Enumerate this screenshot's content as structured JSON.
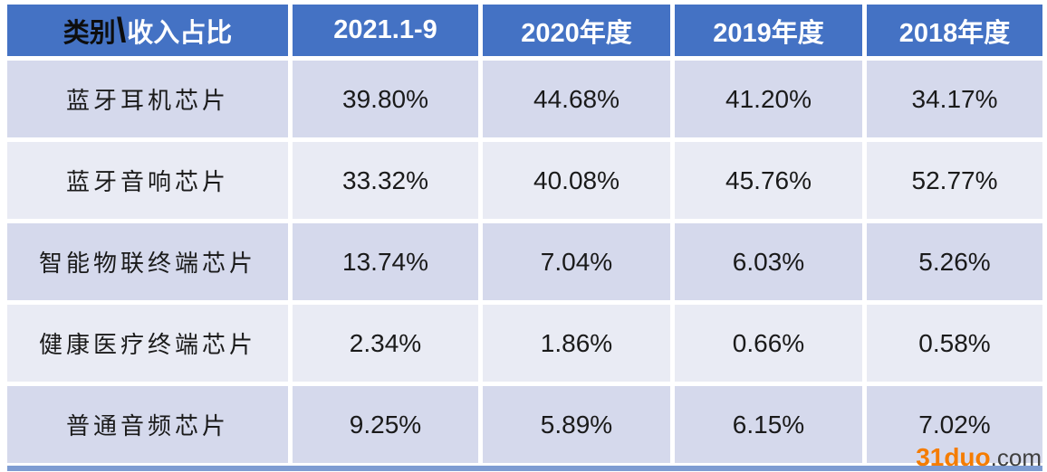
{
  "chart_data": {
    "type": "table",
    "header": {
      "corner_black": "类别",
      "corner_slash": "\\",
      "corner_white": "收入占比",
      "year_columns": [
        "2021.1-9",
        "2020年度",
        "2019年度",
        "2018年度"
      ]
    },
    "rows": [
      {
        "category": "蓝牙耳机芯片",
        "values": [
          "39.80%",
          "44.68%",
          "41.20%",
          "34.17%"
        ]
      },
      {
        "category": "蓝牙音响芯片",
        "values": [
          "33.32%",
          "40.08%",
          "45.76%",
          "52.77%"
        ]
      },
      {
        "category": "智能物联终端芯片",
        "values": [
          "13.74%",
          "7.04%",
          "6.03%",
          "5.26%"
        ]
      },
      {
        "category": "健康医疗终端芯片",
        "values": [
          "2.34%",
          "1.86%",
          "0.66%",
          "0.58%"
        ]
      },
      {
        "category": "普通音频芯片",
        "values": [
          "9.25%",
          "5.89%",
          "6.15%",
          "7.02%"
        ]
      }
    ]
  },
  "watermark": {
    "brand": "31duo",
    "suffix": ".com"
  },
  "colors": {
    "header_bg": "#4472C4",
    "row_odd_bg": "#D5D9EC",
    "row_even_bg": "#E9EBF4",
    "header_text": "#FFFFFF",
    "corner_text": "#0D0D0D",
    "body_text": "#1F1F1F",
    "bottom_strip": "#7E9CD2",
    "watermark_brand": "#F57C00",
    "watermark_suffix": "#3F3F3F"
  }
}
